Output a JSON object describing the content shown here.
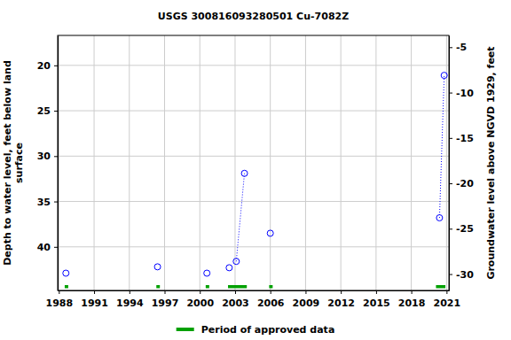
{
  "chart_data": {
    "type": "scatter",
    "title": "USGS 300816093280501 Cu-7082Z",
    "y_label": [
      "Depth to water level, feet below land",
      "surface"
    ],
    "y2_label": "Groundwater level above NGVD 1929, feet",
    "xlim": [
      1987.9,
      2021.2
    ],
    "xticks": [
      1988,
      1991,
      1994,
      1997,
      2000,
      2003,
      2006,
      2009,
      2012,
      2015,
      2018,
      2021
    ],
    "ylim": [
      16.7,
      44.8
    ],
    "yticks": [
      20,
      25,
      30,
      35,
      40
    ],
    "y2lim": [
      -3.7,
      -31.8
    ],
    "y2ticks": [
      -5,
      -10,
      -15,
      -20,
      -25,
      -30
    ],
    "grid": true,
    "legend": "bottom",
    "series": [
      {
        "type": "scatter",
        "color": "#0000ff",
        "marker": "circle-open",
        "x": [
          1988.6,
          1996.4,
          2000.6,
          2002.5,
          2003.1,
          2003.8,
          2006.0,
          2020.4,
          2020.8
        ],
        "values": [
          42.9,
          42.2,
          42.9,
          42.3,
          41.6,
          31.9,
          38.5,
          36.8,
          21.1
        ]
      },
      {
        "type": "line",
        "color": "#0000ff",
        "line_style": "dotted",
        "x": [
          2003.1,
          2003.8,
          null,
          2020.4,
          2020.8
        ],
        "values": [
          41.6,
          31.9,
          null,
          36.8,
          21.1
        ]
      },
      {
        "type": "period",
        "name": "Period of approved data",
        "color": "#00a000",
        "start": [
          1988.5,
          1996.3,
          2000.5,
          2002.4,
          2005.9,
          2020.1
        ],
        "end": [
          1988.8,
          1996.6,
          2000.8,
          2004.0,
          2006.2,
          2020.9
        ]
      }
    ]
  }
}
